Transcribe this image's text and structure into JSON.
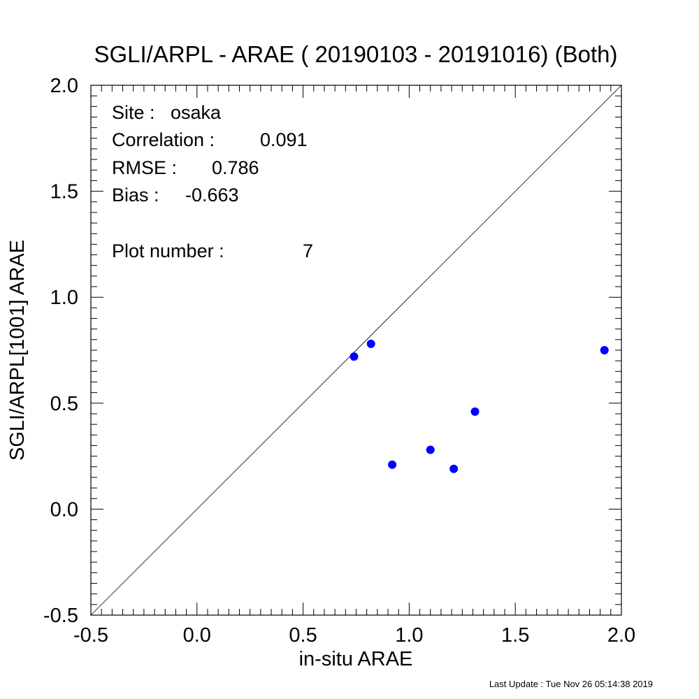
{
  "chart_data": {
    "type": "scatter",
    "title": "SGLI/ARPL - ARAE ( 20190103 - 20191016) (Both)",
    "xlabel": "in-situ ARAE",
    "ylabel": "SGLI/ARPL[1001]    ARAE",
    "xlim": [
      -0.5,
      2.0
    ],
    "ylim": [
      -0.5,
      2.0
    ],
    "xticks": [
      "-0.5",
      "0.0",
      "0.5",
      "1.0",
      "1.5",
      "2.0"
    ],
    "yticks": [
      "-0.5",
      "0.0",
      "0.5",
      "1.0",
      "1.5",
      "2.0"
    ],
    "grid": false,
    "reference_line": "1:1 diagonal",
    "marker_color": "#0000ff",
    "series": [
      {
        "points": [
          {
            "x": 0.74,
            "y": 0.72
          },
          {
            "x": 0.82,
            "y": 0.78
          },
          {
            "x": 0.92,
            "y": 0.21
          },
          {
            "x": 1.1,
            "y": 0.28
          },
          {
            "x": 1.21,
            "y": 0.19
          },
          {
            "x": 1.31,
            "y": 0.46
          },
          {
            "x": 1.92,
            "y": 0.75
          }
        ]
      }
    ],
    "stats": {
      "site_label": "Site :",
      "site_value": "osaka",
      "correlation_label": "Correlation :",
      "correlation_value": "0.091",
      "rmse_label": "RMSE :",
      "rmse_value": "0.786",
      "bias_label": "Bias :",
      "bias_value": "-0.663",
      "plot_number_label": "Plot number :",
      "plot_number_value": "7"
    }
  },
  "footer": {
    "last_update": "Last Update : Tue Nov 26 05:14:38 2019"
  }
}
